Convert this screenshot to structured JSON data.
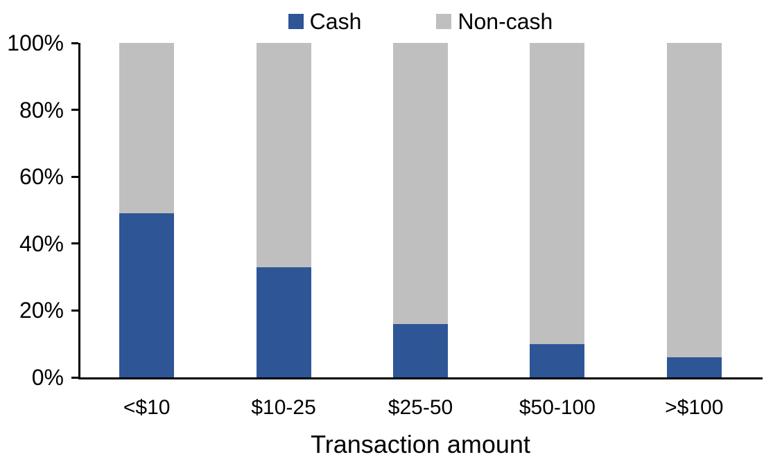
{
  "chart_data": {
    "type": "bar",
    "subtype": "stacked-100-percent",
    "title": "",
    "xlabel": "Transaction amount",
    "ylabel": "",
    "categories": [
      "<$10",
      "$10-25",
      "$25-50",
      "$50-100",
      ">$100"
    ],
    "series": [
      {
        "name": "Cash",
        "color": "#2E5596",
        "values": [
          49,
          33,
          16,
          10,
          6
        ]
      },
      {
        "name": "Non-cash",
        "color": "#BFBFBF",
        "values": [
          51,
          67,
          84,
          90,
          94
        ]
      }
    ],
    "y_ticks": [
      "0%",
      "20%",
      "40%",
      "60%",
      "80%",
      "100%"
    ],
    "ylim": [
      0,
      100
    ],
    "legend_position": "top-center",
    "grid": false,
    "axis_color": "#000000",
    "text_color": "#000000",
    "background_color": "#FFFFFF"
  }
}
